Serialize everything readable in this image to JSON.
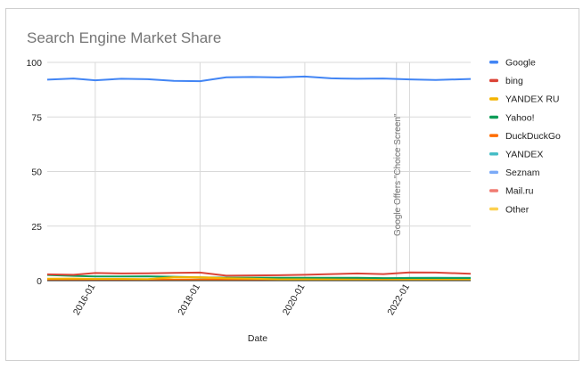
{
  "chart_data": {
    "type": "line",
    "title": "Search Engine Market Share",
    "xlabel": "Date",
    "ylabel": "",
    "x_start": "2015-02",
    "x_end": "2023-03",
    "xlim": [
      "2015-02",
      "2023-03"
    ],
    "ylim": [
      0,
      100
    ],
    "yticks": [
      0,
      25,
      50,
      75,
      100
    ],
    "x_ticks": [
      "2016-01",
      "2018-01",
      "2020-01",
      "2022-01"
    ],
    "grid": true,
    "legend_position": "right",
    "annotation": {
      "text": "Google Offers \"Choice Screen\"",
      "x": "2021-10"
    },
    "x": [
      "2015-02",
      "2015-08",
      "2016-01",
      "2016-07",
      "2017-01",
      "2017-07",
      "2018-01",
      "2018-07",
      "2019-01",
      "2019-07",
      "2020-01",
      "2020-07",
      "2021-01",
      "2021-07",
      "2022-01",
      "2022-07",
      "2023-03"
    ],
    "series": [
      {
        "name": "Google",
        "color": "#4285F4",
        "values": [
          92.1,
          92.6,
          91.8,
          92.5,
          92.3,
          91.5,
          91.4,
          93.2,
          93.3,
          93.1,
          93.5,
          92.7,
          92.5,
          92.6,
          92.2,
          91.9,
          92.4
        ]
      },
      {
        "name": "bing",
        "color": "#DB4437",
        "values": [
          2.9,
          2.7,
          3.5,
          3.3,
          3.4,
          3.6,
          3.7,
          2.3,
          2.4,
          2.5,
          2.7,
          3.0,
          3.3,
          3.0,
          3.8,
          3.7,
          3.2
        ]
      },
      {
        "name": "YANDEX RU",
        "color": "#F4B400",
        "values": [
          0.9,
          1.0,
          0.8,
          0.8,
          0.7,
          1.6,
          1.6,
          1.1,
          0.9,
          0.6,
          0.6,
          0.5,
          0.4,
          0.3,
          0.4,
          0.4,
          0.4
        ]
      },
      {
        "name": "Yahoo!",
        "color": "#0F9D58",
        "values": [
          2.6,
          2.2,
          1.9,
          1.9,
          2.0,
          1.8,
          1.5,
          1.4,
          1.4,
          1.3,
          1.3,
          1.3,
          1.3,
          1.2,
          1.2,
          1.2,
          1.2
        ]
      },
      {
        "name": "DuckDuckGo",
        "color": "#FF6D01",
        "values": [
          0.3,
          0.3,
          0.3,
          0.4,
          0.4,
          0.4,
          0.5,
          0.5,
          0.6,
          0.6,
          0.6,
          0.6,
          0.6,
          0.6,
          0.7,
          0.7,
          0.6
        ]
      },
      {
        "name": "YANDEX",
        "color": "#46BDC6",
        "values": [
          0.2,
          0.2,
          0.2,
          0.2,
          0.2,
          0.2,
          0.2,
          0.3,
          0.3,
          0.4,
          0.5,
          0.7,
          0.9,
          1.0,
          1.3,
          1.4,
          1.3
        ]
      },
      {
        "name": "Seznam",
        "color": "#7BAAF7",
        "values": [
          0.4,
          0.4,
          0.3,
          0.3,
          0.3,
          0.3,
          0.3,
          0.3,
          0.3,
          0.3,
          0.3,
          0.3,
          0.3,
          0.2,
          0.2,
          0.2,
          0.2
        ]
      },
      {
        "name": "Mail.ru",
        "color": "#F07B72",
        "values": [
          0.3,
          0.3,
          0.3,
          0.3,
          0.3,
          0.3,
          0.3,
          0.3,
          0.2,
          0.2,
          0.2,
          0.2,
          0.2,
          0.2,
          0.2,
          0.2,
          0.2
        ]
      },
      {
        "name": "Other",
        "color": "#FCD04F",
        "values": [
          0.8,
          0.7,
          0.7,
          0.6,
          0.6,
          0.6,
          0.6,
          0.6,
          0.6,
          0.6,
          0.5,
          0.5,
          0.5,
          0.5,
          0.5,
          0.5,
          0.5
        ]
      }
    ]
  }
}
